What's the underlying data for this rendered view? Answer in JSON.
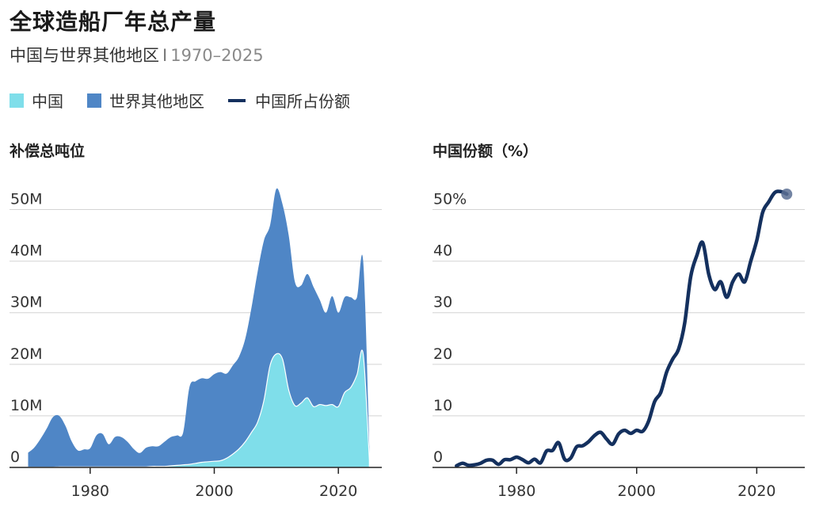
{
  "header": {
    "title": "全球造船厂年总产量",
    "subtitle": "中国与世界其他地区",
    "separator": "I",
    "range": "1970–2025"
  },
  "legend": [
    {
      "label": "中国",
      "color": "#7fdeea",
      "kind": "box"
    },
    {
      "label": "世界其他地区",
      "color": "#4f86c6",
      "kind": "box"
    },
    {
      "label": "中国所占份额",
      "color": "#14305e",
      "kind": "line"
    }
  ],
  "chart_data": [
    {
      "type": "area",
      "stacked": true,
      "title": "补偿总吨位",
      "ylim": [
        0,
        55
      ],
      "y_unit": "M",
      "yticks": [
        0,
        10,
        20,
        30,
        40,
        50
      ],
      "ytick_labels": [
        "0",
        "10M",
        "20M",
        "30M",
        "40M",
        "50M"
      ],
      "xlim": [
        1967,
        2027
      ],
      "xticks": [
        1980,
        2000,
        2020
      ],
      "grid": "horizontal",
      "x": [
        1970,
        1971,
        1972,
        1973,
        1974,
        1975,
        1976,
        1977,
        1978,
        1979,
        1980,
        1981,
        1982,
        1983,
        1984,
        1985,
        1986,
        1987,
        1988,
        1989,
        1990,
        1991,
        1992,
        1993,
        1994,
        1995,
        1996,
        1997,
        1998,
        1999,
        2000,
        2001,
        2002,
        2003,
        2004,
        2005,
        2006,
        2007,
        2008,
        2009,
        2010,
        2011,
        2012,
        2013,
        2014,
        2015,
        2016,
        2017,
        2018,
        2019,
        2020,
        2021,
        2022,
        2023,
        2024,
        2025
      ],
      "series": [
        {
          "name": "中国",
          "color": "#7fdeea",
          "values": [
            0.05,
            0.05,
            0.05,
            0.05,
            0.05,
            0.1,
            0.1,
            0.1,
            0.1,
            0.1,
            0.1,
            0.1,
            0.1,
            0.1,
            0.1,
            0.1,
            0.1,
            0.1,
            0.1,
            0.1,
            0.2,
            0.2,
            0.2,
            0.3,
            0.4,
            0.5,
            0.6,
            0.8,
            1.0,
            1.1,
            1.2,
            1.3,
            1.8,
            2.6,
            3.6,
            5.0,
            6.8,
            8.8,
            13.0,
            19.8,
            22.0,
            21.0,
            15.0,
            12.0,
            12.5,
            13.5,
            11.8,
            12.2,
            12.0,
            12.2,
            11.8,
            14.5,
            15.5,
            18.0,
            22.0,
            1.5
          ]
        },
        {
          "name": "世界其他地区",
          "color": "#4f86c6",
          "values": [
            2.8,
            3.8,
            5.5,
            7.5,
            9.7,
            9.9,
            8.0,
            5.0,
            3.2,
            3.4,
            3.6,
            6.1,
            6.4,
            4.4,
            5.8,
            5.8,
            4.9,
            3.5,
            2.7,
            3.7,
            3.9,
            3.9,
            4.8,
            5.6,
            5.8,
            6.3,
            15.0,
            15.9,
            16.3,
            16.1,
            16.9,
            17.2,
            16.4,
            17.2,
            17.9,
            20.0,
            24.2,
            29.2,
            31.0,
            27.2,
            32.0,
            30.0,
            30.0,
            24.0,
            22.8,
            24.0,
            23.2,
            20.3,
            18.0,
            21.0,
            18.2,
            18.5,
            17.5,
            15.0,
            18.0,
            2.5
          ]
        }
      ]
    },
    {
      "type": "line",
      "title": "中国份额（%）",
      "ylim": [
        0,
        55
      ],
      "yticks": [
        0,
        10,
        20,
        30,
        40,
        50
      ],
      "ytick_labels": [
        "0",
        "10",
        "20",
        "30",
        "40",
        "50%"
      ],
      "xlim": [
        1966,
        2028
      ],
      "xticks": [
        1980,
        2000,
        2020
      ],
      "grid": "horizontal",
      "color": "#14305e",
      "x": [
        1970,
        1971,
        1972,
        1973,
        1974,
        1975,
        1976,
        1977,
        1978,
        1979,
        1980,
        1981,
        1982,
        1983,
        1984,
        1985,
        1986,
        1987,
        1988,
        1989,
        1990,
        1991,
        1992,
        1993,
        1994,
        1995,
        1996,
        1997,
        1998,
        1999,
        2000,
        2001,
        2002,
        2003,
        2004,
        2005,
        2006,
        2007,
        2008,
        2009,
        2010,
        2011,
        2012,
        2013,
        2014,
        2015,
        2016,
        2017,
        2018,
        2019,
        2020,
        2021,
        2022,
        2023,
        2024,
        2025
      ],
      "values": [
        0.3,
        0.8,
        0.4,
        0.5,
        0.8,
        1.4,
        1.4,
        0.6,
        1.5,
        1.5,
        2.0,
        1.5,
        0.9,
        1.6,
        0.9,
        3.2,
        3.3,
        4.8,
        1.6,
        1.8,
        4.0,
        4.2,
        5.0,
        6.2,
        6.8,
        5.5,
        4.5,
        6.5,
        7.2,
        6.6,
        7.2,
        7.0,
        9.0,
        12.8,
        14.5,
        18.5,
        21.0,
        23.0,
        28.0,
        37.0,
        41.0,
        43.6,
        37.5,
        34.5,
        36.0,
        33.0,
        36.0,
        37.5,
        36.0,
        40.0,
        44.0,
        49.5,
        51.5,
        53.3,
        53.5,
        53.0
      ]
    }
  ]
}
